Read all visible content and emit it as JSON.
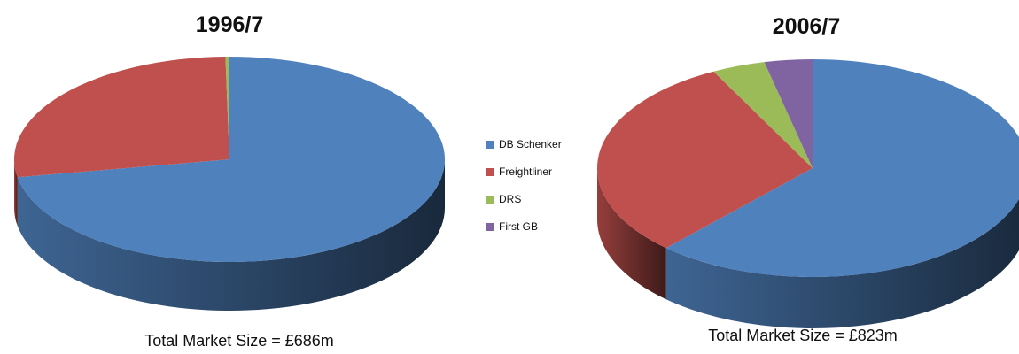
{
  "legend": {
    "items": [
      {
        "label": "DB Schenker",
        "color": "#4F81BD"
      },
      {
        "label": "Freightliner",
        "color": "#C0504D"
      },
      {
        "label": "DRS",
        "color": "#9BBB59"
      },
      {
        "label": "First GB",
        "color": "#8064A2"
      }
    ]
  },
  "chart_data": [
    {
      "type": "pie",
      "title": "1996/7",
      "footer": "Total Market Size = £686m",
      "categories": [
        "DB Schenker",
        "Freightliner",
        "DRS",
        "First GB"
      ],
      "values": [
        72.2,
        27.5,
        0.3,
        0.0
      ],
      "colors": [
        "#4F81BD",
        "#C0504D",
        "#9BBB59",
        "#8064A2"
      ]
    },
    {
      "type": "pie",
      "title": "2006/7",
      "footer": "Total Market Size = £823m",
      "categories": [
        "DB Schenker",
        "Freightliner",
        "DRS",
        "First GB"
      ],
      "values": [
        61.9,
        30.5,
        4.0,
        3.6
      ],
      "colors": [
        "#4F81BD",
        "#C0504D",
        "#9BBB59",
        "#8064A2"
      ]
    }
  ]
}
